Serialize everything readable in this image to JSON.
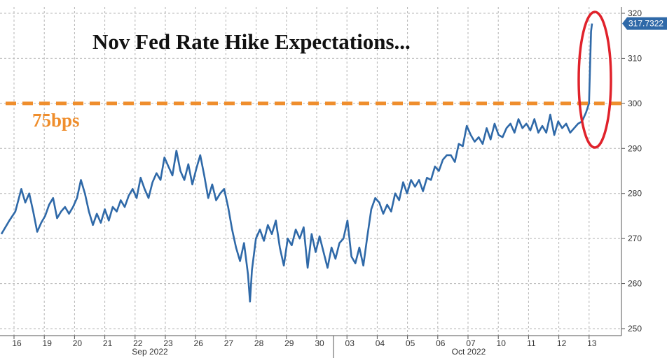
{
  "chart_data": {
    "type": "line",
    "title": "Nov Fed Rate Hike Expectations...",
    "ylim": [
      250,
      320
    ],
    "yticks": [
      250,
      260,
      270,
      280,
      290,
      300,
      310,
      320
    ],
    "grid": true,
    "reference_line": {
      "value": 300,
      "label": "75bps",
      "color": "#ef8e2d"
    },
    "last_value": {
      "value": 317.7322,
      "label": "317.7322"
    },
    "x_day_labels": [
      "16",
      "19",
      "20",
      "21",
      "22",
      "23",
      "26",
      "27",
      "28",
      "29",
      "30",
      "03",
      "04",
      "05",
      "06",
      "07",
      "10",
      "11",
      "12",
      "13"
    ],
    "month_labels": [
      "Sep 2022",
      "Oct 2022"
    ],
    "highlight": "red ellipse around final spike",
    "colors": {
      "line": "#2f69a8",
      "highlight": "#e0222b",
      "grid": "#b5b5b5",
      "last_value_bg": "#2f69a8"
    },
    "series": [
      {
        "values": [
          [
            0,
            271
          ],
          [
            0.4,
            274
          ],
          [
            0.7,
            276
          ],
          [
            1.0,
            281
          ],
          [
            1.2,
            278
          ],
          [
            1.4,
            280
          ],
          [
            1.6,
            276
          ],
          [
            1.8,
            271.5
          ],
          [
            2.0,
            273.5
          ],
          [
            2.2,
            275
          ],
          [
            2.4,
            277.5
          ],
          [
            2.6,
            279
          ],
          [
            2.8,
            274.5
          ],
          [
            3.0,
            276
          ],
          [
            3.2,
            277
          ],
          [
            3.4,
            275.5
          ],
          [
            3.6,
            277
          ],
          [
            3.8,
            279
          ],
          [
            4.0,
            283
          ],
          [
            4.2,
            280
          ],
          [
            4.4,
            276
          ],
          [
            4.6,
            273
          ],
          [
            4.8,
            275.5
          ],
          [
            5.0,
            273.5
          ],
          [
            5.2,
            276.5
          ],
          [
            5.4,
            274
          ],
          [
            5.6,
            277
          ],
          [
            5.8,
            276
          ],
          [
            6.0,
            278.5
          ],
          [
            6.2,
            277
          ],
          [
            6.4,
            279.5
          ],
          [
            6.6,
            281
          ],
          [
            6.8,
            279
          ],
          [
            7.0,
            283.5
          ],
          [
            7.2,
            281
          ],
          [
            7.4,
            279
          ],
          [
            7.6,
            282.5
          ],
          [
            7.8,
            284.5
          ],
          [
            8.0,
            283
          ],
          [
            8.2,
            288
          ],
          [
            8.4,
            286
          ],
          [
            8.6,
            284
          ],
          [
            8.8,
            289.5
          ],
          [
            9.0,
            285
          ],
          [
            9.2,
            283
          ],
          [
            9.4,
            286.5
          ],
          [
            9.6,
            282
          ],
          [
            9.8,
            285.5
          ],
          [
            10.0,
            288.5
          ],
          [
            10.2,
            284
          ],
          [
            10.4,
            279
          ],
          [
            10.6,
            282
          ],
          [
            10.8,
            278.5
          ],
          [
            11.0,
            280
          ],
          [
            11.2,
            281
          ],
          [
            11.4,
            277
          ],
          [
            11.6,
            272
          ],
          [
            11.8,
            268
          ],
          [
            12.0,
            265
          ],
          [
            12.2,
            269
          ],
          [
            12.4,
            262
          ],
          [
            12.5,
            256
          ],
          [
            12.6,
            263
          ],
          [
            12.8,
            270
          ],
          [
            13.0,
            272
          ],
          [
            13.2,
            269.5
          ],
          [
            13.4,
            273
          ],
          [
            13.6,
            271
          ],
          [
            13.8,
            274
          ],
          [
            14.0,
            268
          ],
          [
            14.2,
            264
          ],
          [
            14.4,
            270
          ],
          [
            14.6,
            268.5
          ],
          [
            14.8,
            272
          ],
          [
            15.0,
            270
          ],
          [
            15.2,
            272.5
          ],
          [
            15.4,
            263.5
          ],
          [
            15.6,
            271
          ],
          [
            15.8,
            267
          ],
          [
            16.0,
            270.5
          ],
          [
            16.2,
            267
          ],
          [
            16.4,
            263.5
          ],
          [
            16.6,
            268
          ],
          [
            16.8,
            265.5
          ],
          [
            17.0,
            269
          ],
          [
            17.2,
            270
          ],
          [
            17.4,
            274
          ],
          [
            17.6,
            266
          ],
          [
            17.8,
            264.5
          ],
          [
            18.0,
            268
          ],
          [
            18.2,
            264
          ],
          [
            18.4,
            270.5
          ],
          [
            18.6,
            276.5
          ],
          [
            18.8,
            279
          ],
          [
            19.0,
            278
          ],
          [
            19.2,
            275.5
          ],
          [
            19.4,
            277.5
          ],
          [
            19.6,
            276
          ],
          [
            19.8,
            280
          ],
          [
            20.0,
            278.5
          ],
          [
            20.2,
            282.5
          ],
          [
            20.4,
            280
          ],
          [
            20.6,
            283
          ],
          [
            20.8,
            281.5
          ],
          [
            21.0,
            283
          ],
          [
            21.2,
            280.5
          ],
          [
            21.4,
            283.5
          ],
          [
            21.6,
            283
          ],
          [
            21.8,
            286
          ],
          [
            22.0,
            285
          ],
          [
            22.2,
            287.5
          ],
          [
            22.4,
            288.5
          ],
          [
            22.6,
            288.5
          ],
          [
            22.8,
            287
          ],
          [
            23.0,
            291
          ],
          [
            23.2,
            290.5
          ],
          [
            23.4,
            295
          ],
          [
            23.6,
            293
          ],
          [
            23.8,
            291.5
          ],
          [
            24.0,
            292.5
          ],
          [
            24.2,
            291
          ],
          [
            24.4,
            294.5
          ],
          [
            24.6,
            292
          ],
          [
            24.8,
            295.5
          ],
          [
            25.0,
            293
          ],
          [
            25.2,
            292.5
          ],
          [
            25.4,
            294.5
          ],
          [
            25.6,
            295.5
          ],
          [
            25.8,
            293.5
          ],
          [
            26.0,
            296.5
          ],
          [
            26.2,
            294.5
          ],
          [
            26.4,
            295.5
          ],
          [
            26.6,
            294
          ],
          [
            26.8,
            296.5
          ],
          [
            27.0,
            293.5
          ],
          [
            27.2,
            295
          ],
          [
            27.4,
            293.5
          ],
          [
            27.6,
            297.5
          ],
          [
            27.8,
            293
          ],
          [
            28.0,
            296
          ],
          [
            28.2,
            294.5
          ],
          [
            28.4,
            295.5
          ],
          [
            28.6,
            293.5
          ],
          [
            28.8,
            294.5
          ],
          [
            29.0,
            295.5
          ],
          [
            29.2,
            296
          ],
          [
            29.4,
            298
          ],
          [
            29.55,
            300
          ],
          [
            29.65,
            316
          ],
          [
            29.7,
            317.7322
          ]
        ]
      }
    ]
  }
}
